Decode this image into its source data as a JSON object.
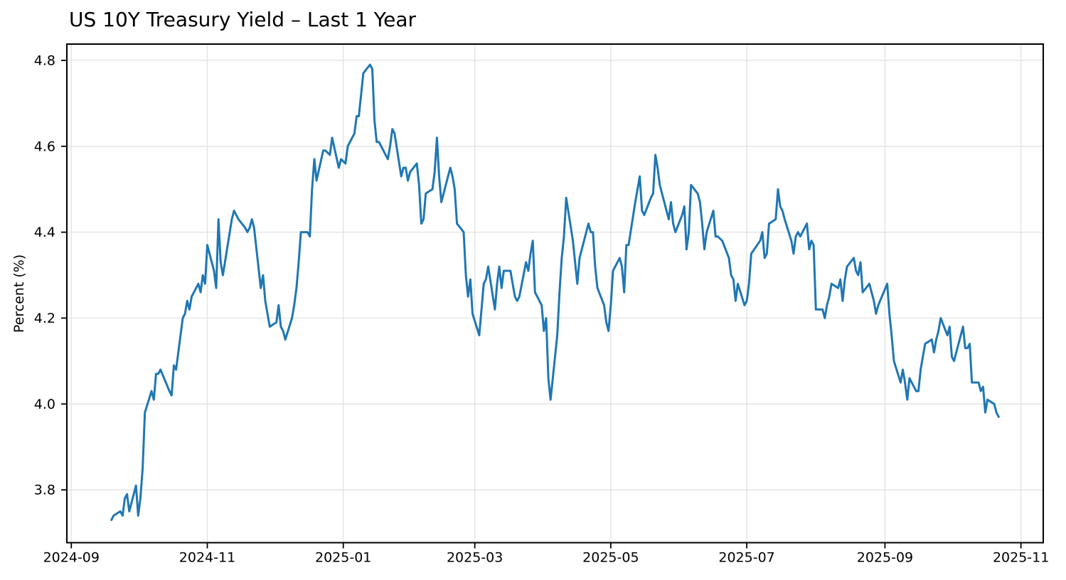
{
  "chart_data": {
    "type": "line",
    "title": "US 10Y Treasury Yield – Last 1 Year",
    "xlabel": "",
    "ylabel": "Percent (%)",
    "legend": "none",
    "grid": true,
    "line_color": "#1f77b4",
    "line_width": 3,
    "grid_color": "#e2e2e2",
    "spine_color": "#000000",
    "background": "#ffffff",
    "ylim": [
      3.677,
      4.838
    ],
    "y_ticks": [
      3.8,
      4.0,
      4.2,
      4.4,
      4.6,
      4.8
    ],
    "xlim": [
      "2024-08-30",
      "2025-11-11"
    ],
    "x_ticks": [
      {
        "date": "2024-09-01",
        "label": "2024-09"
      },
      {
        "date": "2024-11-01",
        "label": "2024-11"
      },
      {
        "date": "2025-01-01",
        "label": "2025-01"
      },
      {
        "date": "2025-03-01",
        "label": "2025-03"
      },
      {
        "date": "2025-05-01",
        "label": "2025-05"
      },
      {
        "date": "2025-07-01",
        "label": "2025-07"
      },
      {
        "date": "2025-09-01",
        "label": "2025-09"
      },
      {
        "date": "2025-11-01",
        "label": "2025-11"
      }
    ],
    "series": [
      {
        "name": "US 10Y Treasury Yield",
        "points": [
          [
            "2024-09-19",
            3.73
          ],
          [
            "2024-09-20",
            3.74
          ],
          [
            "2024-09-23",
            3.75
          ],
          [
            "2024-09-24",
            3.74
          ],
          [
            "2024-09-25",
            3.78
          ],
          [
            "2024-09-26",
            3.79
          ],
          [
            "2024-09-27",
            3.75
          ],
          [
            "2024-09-30",
            3.81
          ],
          [
            "2024-10-01",
            3.74
          ],
          [
            "2024-10-02",
            3.78
          ],
          [
            "2024-10-03",
            3.85
          ],
          [
            "2024-10-04",
            3.98
          ],
          [
            "2024-10-07",
            4.03
          ],
          [
            "2024-10-08",
            4.01
          ],
          [
            "2024-10-09",
            4.07
          ],
          [
            "2024-10-10",
            4.07
          ],
          [
            "2024-10-11",
            4.08
          ],
          [
            "2024-10-15",
            4.03
          ],
          [
            "2024-10-16",
            4.02
          ],
          [
            "2024-10-17",
            4.09
          ],
          [
            "2024-10-18",
            4.08
          ],
          [
            "2024-10-21",
            4.2
          ],
          [
            "2024-10-22",
            4.21
          ],
          [
            "2024-10-23",
            4.24
          ],
          [
            "2024-10-24",
            4.22
          ],
          [
            "2024-10-25",
            4.25
          ],
          [
            "2024-10-28",
            4.28
          ],
          [
            "2024-10-29",
            4.26
          ],
          [
            "2024-10-30",
            4.3
          ],
          [
            "2024-10-31",
            4.28
          ],
          [
            "2024-11-01",
            4.37
          ],
          [
            "2024-11-04",
            4.31
          ],
          [
            "2024-11-05",
            4.27
          ],
          [
            "2024-11-06",
            4.43
          ],
          [
            "2024-11-07",
            4.33
          ],
          [
            "2024-11-08",
            4.3
          ],
          [
            "2024-11-12",
            4.43
          ],
          [
            "2024-11-13",
            4.45
          ],
          [
            "2024-11-14",
            4.44
          ],
          [
            "2024-11-15",
            4.43
          ],
          [
            "2024-11-18",
            4.41
          ],
          [
            "2024-11-19",
            4.4
          ],
          [
            "2024-11-20",
            4.41
          ],
          [
            "2024-11-21",
            4.43
          ],
          [
            "2024-11-22",
            4.41
          ],
          [
            "2024-11-25",
            4.27
          ],
          [
            "2024-11-26",
            4.3
          ],
          [
            "2024-11-27",
            4.24
          ],
          [
            "2024-11-29",
            4.18
          ],
          [
            "2024-12-02",
            4.19
          ],
          [
            "2024-12-03",
            4.23
          ],
          [
            "2024-12-04",
            4.18
          ],
          [
            "2024-12-05",
            4.17
          ],
          [
            "2024-12-06",
            4.15
          ],
          [
            "2024-12-09",
            4.2
          ],
          [
            "2024-12-10",
            4.23
          ],
          [
            "2024-12-11",
            4.27
          ],
          [
            "2024-12-12",
            4.33
          ],
          [
            "2024-12-13",
            4.4
          ],
          [
            "2024-12-16",
            4.4
          ],
          [
            "2024-12-17",
            4.39
          ],
          [
            "2024-12-18",
            4.5
          ],
          [
            "2024-12-19",
            4.57
          ],
          [
            "2024-12-20",
            4.52
          ],
          [
            "2024-12-23",
            4.59
          ],
          [
            "2024-12-24",
            4.59
          ],
          [
            "2024-12-26",
            4.58
          ],
          [
            "2024-12-27",
            4.62
          ],
          [
            "2024-12-30",
            4.55
          ],
          [
            "2024-12-31",
            4.57
          ],
          [
            "2025-01-02",
            4.56
          ],
          [
            "2025-01-03",
            4.6
          ],
          [
            "2025-01-06",
            4.63
          ],
          [
            "2025-01-07",
            4.67
          ],
          [
            "2025-01-08",
            4.67
          ],
          [
            "2025-01-10",
            4.77
          ],
          [
            "2025-01-13",
            4.79
          ],
          [
            "2025-01-14",
            4.78
          ],
          [
            "2025-01-15",
            4.66
          ],
          [
            "2025-01-16",
            4.61
          ],
          [
            "2025-01-17",
            4.61
          ],
          [
            "2025-01-21",
            4.57
          ],
          [
            "2025-01-22",
            4.6
          ],
          [
            "2025-01-23",
            4.64
          ],
          [
            "2025-01-24",
            4.63
          ],
          [
            "2025-01-27",
            4.53
          ],
          [
            "2025-01-28",
            4.55
          ],
          [
            "2025-01-29",
            4.55
          ],
          [
            "2025-01-30",
            4.52
          ],
          [
            "2025-01-31",
            4.54
          ],
          [
            "2025-02-03",
            4.56
          ],
          [
            "2025-02-04",
            4.51
          ],
          [
            "2025-02-05",
            4.42
          ],
          [
            "2025-02-06",
            4.43
          ],
          [
            "2025-02-07",
            4.49
          ],
          [
            "2025-02-10",
            4.5
          ],
          [
            "2025-02-11",
            4.54
          ],
          [
            "2025-02-12",
            4.62
          ],
          [
            "2025-02-13",
            4.53
          ],
          [
            "2025-02-14",
            4.47
          ],
          [
            "2025-02-18",
            4.55
          ],
          [
            "2025-02-19",
            4.53
          ],
          [
            "2025-02-20",
            4.5
          ],
          [
            "2025-02-21",
            4.42
          ],
          [
            "2025-02-24",
            4.4
          ],
          [
            "2025-02-25",
            4.3
          ],
          [
            "2025-02-26",
            4.25
          ],
          [
            "2025-02-27",
            4.29
          ],
          [
            "2025-02-28",
            4.21
          ],
          [
            "2025-03-03",
            4.16
          ],
          [
            "2025-03-04",
            4.22
          ],
          [
            "2025-03-05",
            4.28
          ],
          [
            "2025-03-06",
            4.29
          ],
          [
            "2025-03-07",
            4.32
          ],
          [
            "2025-03-10",
            4.22
          ],
          [
            "2025-03-11",
            4.28
          ],
          [
            "2025-03-12",
            4.32
          ],
          [
            "2025-03-13",
            4.27
          ],
          [
            "2025-03-14",
            4.31
          ],
          [
            "2025-03-17",
            4.31
          ],
          [
            "2025-03-18",
            4.28
          ],
          [
            "2025-03-19",
            4.25
          ],
          [
            "2025-03-20",
            4.24
          ],
          [
            "2025-03-21",
            4.25
          ],
          [
            "2025-03-24",
            4.33
          ],
          [
            "2025-03-25",
            4.31
          ],
          [
            "2025-03-26",
            4.35
          ],
          [
            "2025-03-27",
            4.38
          ],
          [
            "2025-03-28",
            4.26
          ],
          [
            "2025-03-31",
            4.23
          ],
          [
            "2025-04-01",
            4.17
          ],
          [
            "2025-04-02",
            4.2
          ],
          [
            "2025-04-03",
            4.06
          ],
          [
            "2025-04-04",
            4.01
          ],
          [
            "2025-04-07",
            4.16
          ],
          [
            "2025-04-08",
            4.26
          ],
          [
            "2025-04-09",
            4.34
          ],
          [
            "2025-04-10",
            4.39
          ],
          [
            "2025-04-11",
            4.48
          ],
          [
            "2025-04-14",
            4.38
          ],
          [
            "2025-04-15",
            4.33
          ],
          [
            "2025-04-16",
            4.28
          ],
          [
            "2025-04-17",
            4.34
          ],
          [
            "2025-04-21",
            4.42
          ],
          [
            "2025-04-22",
            4.4
          ],
          [
            "2025-04-23",
            4.4
          ],
          [
            "2025-04-24",
            4.32
          ],
          [
            "2025-04-25",
            4.27
          ],
          [
            "2025-04-28",
            4.23
          ],
          [
            "2025-04-29",
            4.19
          ],
          [
            "2025-04-30",
            4.17
          ],
          [
            "2025-05-01",
            4.23
          ],
          [
            "2025-05-02",
            4.31
          ],
          [
            "2025-05-05",
            4.34
          ],
          [
            "2025-05-06",
            4.32
          ],
          [
            "2025-05-07",
            4.26
          ],
          [
            "2025-05-08",
            4.37
          ],
          [
            "2025-05-09",
            4.37
          ],
          [
            "2025-05-12",
            4.47
          ],
          [
            "2025-05-13",
            4.5
          ],
          [
            "2025-05-14",
            4.53
          ],
          [
            "2025-05-15",
            4.45
          ],
          [
            "2025-05-16",
            4.44
          ],
          [
            "2025-05-19",
            4.48
          ],
          [
            "2025-05-20",
            4.49
          ],
          [
            "2025-05-21",
            4.58
          ],
          [
            "2025-05-22",
            4.55
          ],
          [
            "2025-05-23",
            4.51
          ],
          [
            "2025-05-27",
            4.43
          ],
          [
            "2025-05-28",
            4.47
          ],
          [
            "2025-05-29",
            4.42
          ],
          [
            "2025-05-30",
            4.4
          ],
          [
            "2025-06-02",
            4.44
          ],
          [
            "2025-06-03",
            4.46
          ],
          [
            "2025-06-04",
            4.36
          ],
          [
            "2025-06-05",
            4.4
          ],
          [
            "2025-06-06",
            4.51
          ],
          [
            "2025-06-09",
            4.49
          ],
          [
            "2025-06-10",
            4.47
          ],
          [
            "2025-06-11",
            4.42
          ],
          [
            "2025-06-12",
            4.36
          ],
          [
            "2025-06-13",
            4.4
          ],
          [
            "2025-06-16",
            4.45
          ],
          [
            "2025-06-17",
            4.39
          ],
          [
            "2025-06-18",
            4.39
          ],
          [
            "2025-06-20",
            4.38
          ],
          [
            "2025-06-23",
            4.34
          ],
          [
            "2025-06-24",
            4.3
          ],
          [
            "2025-06-25",
            4.29
          ],
          [
            "2025-06-26",
            4.24
          ],
          [
            "2025-06-27",
            4.28
          ],
          [
            "2025-06-30",
            4.23
          ],
          [
            "2025-07-01",
            4.24
          ],
          [
            "2025-07-02",
            4.28
          ],
          [
            "2025-07-03",
            4.35
          ],
          [
            "2025-07-07",
            4.38
          ],
          [
            "2025-07-08",
            4.4
          ],
          [
            "2025-07-09",
            4.34
          ],
          [
            "2025-07-10",
            4.35
          ],
          [
            "2025-07-11",
            4.42
          ],
          [
            "2025-07-14",
            4.43
          ],
          [
            "2025-07-15",
            4.5
          ],
          [
            "2025-07-16",
            4.46
          ],
          [
            "2025-07-17",
            4.45
          ],
          [
            "2025-07-18",
            4.43
          ],
          [
            "2025-07-21",
            4.38
          ],
          [
            "2025-07-22",
            4.35
          ],
          [
            "2025-07-23",
            4.39
          ],
          [
            "2025-07-24",
            4.4
          ],
          [
            "2025-07-25",
            4.39
          ],
          [
            "2025-07-28",
            4.42
          ],
          [
            "2025-07-29",
            4.36
          ],
          [
            "2025-07-30",
            4.38
          ],
          [
            "2025-07-31",
            4.37
          ],
          [
            "2025-08-01",
            4.22
          ],
          [
            "2025-08-04",
            4.22
          ],
          [
            "2025-08-05",
            4.2
          ],
          [
            "2025-08-06",
            4.23
          ],
          [
            "2025-08-07",
            4.25
          ],
          [
            "2025-08-08",
            4.28
          ],
          [
            "2025-08-11",
            4.27
          ],
          [
            "2025-08-12",
            4.29
          ],
          [
            "2025-08-13",
            4.24
          ],
          [
            "2025-08-14",
            4.29
          ],
          [
            "2025-08-15",
            4.32
          ],
          [
            "2025-08-18",
            4.34
          ],
          [
            "2025-08-19",
            4.31
          ],
          [
            "2025-08-20",
            4.3
          ],
          [
            "2025-08-21",
            4.33
          ],
          [
            "2025-08-22",
            4.26
          ],
          [
            "2025-08-25",
            4.28
          ],
          [
            "2025-08-26",
            4.26
          ],
          [
            "2025-08-27",
            4.24
          ],
          [
            "2025-08-28",
            4.21
          ],
          [
            "2025-08-29",
            4.23
          ],
          [
            "2025-09-02",
            4.28
          ],
          [
            "2025-09-03",
            4.21
          ],
          [
            "2025-09-04",
            4.16
          ],
          [
            "2025-09-05",
            4.1
          ],
          [
            "2025-09-08",
            4.05
          ],
          [
            "2025-09-09",
            4.08
          ],
          [
            "2025-09-10",
            4.05
          ],
          [
            "2025-09-11",
            4.01
          ],
          [
            "2025-09-12",
            4.06
          ],
          [
            "2025-09-15",
            4.03
          ],
          [
            "2025-09-16",
            4.03
          ],
          [
            "2025-09-17",
            4.08
          ],
          [
            "2025-09-18",
            4.11
          ],
          [
            "2025-09-19",
            4.14
          ],
          [
            "2025-09-22",
            4.15
          ],
          [
            "2025-09-23",
            4.12
          ],
          [
            "2025-09-24",
            4.15
          ],
          [
            "2025-09-25",
            4.17
          ],
          [
            "2025-09-26",
            4.2
          ],
          [
            "2025-09-29",
            4.16
          ],
          [
            "2025-09-30",
            4.18
          ],
          [
            "2025-10-01",
            4.11
          ],
          [
            "2025-10-02",
            4.1
          ],
          [
            "2025-10-03",
            4.12
          ],
          [
            "2025-10-06",
            4.18
          ],
          [
            "2025-10-07",
            4.13
          ],
          [
            "2025-10-08",
            4.13
          ],
          [
            "2025-10-09",
            4.14
          ],
          [
            "2025-10-10",
            4.05
          ],
          [
            "2025-10-13",
            4.05
          ],
          [
            "2025-10-14",
            4.03
          ],
          [
            "2025-10-15",
            4.04
          ],
          [
            "2025-10-16",
            3.98
          ],
          [
            "2025-10-17",
            4.01
          ],
          [
            "2025-10-20",
            4.0
          ],
          [
            "2025-10-21",
            3.98
          ],
          [
            "2025-10-22",
            3.97
          ]
        ]
      }
    ]
  }
}
